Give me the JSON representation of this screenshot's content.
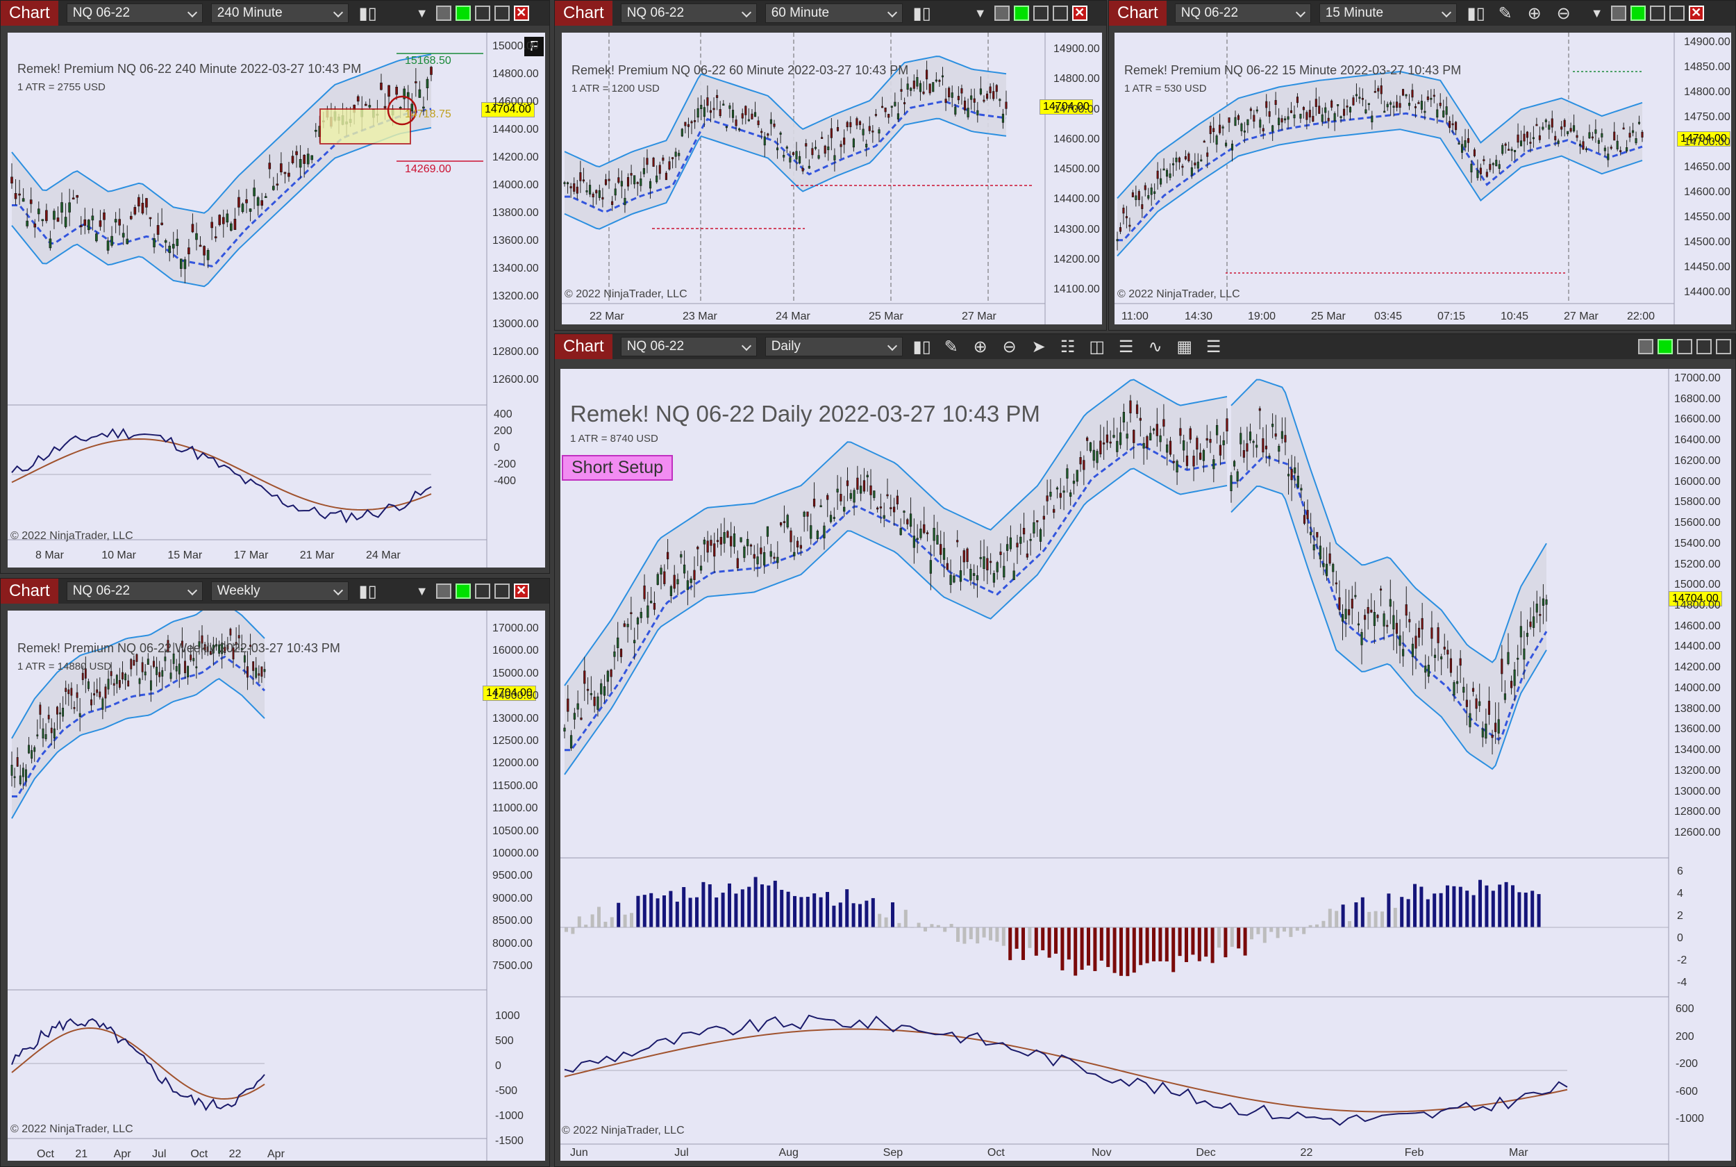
{
  "charts": [
    {
      "id": "tl",
      "title": "Chart",
      "instrument": "NQ 06-22",
      "interval": "240 Minute",
      "header": "Remek!  Premium  NQ 06-22  240 Minute  2022-03-27 10:43 PM",
      "atr": "1 ATR = 2755 USD",
      "price_tag": "14704.00",
      "level_high": "15168.50",
      "level_mid": "14718.75",
      "level_low": "14269.00",
      "y_ticks": [
        "15000.00",
        "14800.00",
        "14600.00",
        "14400.00",
        "14200.00",
        "14000.00",
        "13800.00",
        "13600.00",
        "13400.00",
        "13200.00",
        "13000.00",
        "12800.00",
        "12600.00"
      ],
      "osc_ticks": [
        "400",
        "200",
        "0",
        "-200",
        "-400"
      ],
      "x_ticks": [
        "8 Mar",
        "10 Mar",
        "15 Mar",
        "17 Mar",
        "21 Mar",
        "24 Mar"
      ],
      "copyright": "© 2022 NinjaTrader, LLC",
      "badge": "F"
    },
    {
      "id": "tm",
      "title": "Chart",
      "instrument": "NQ 06-22",
      "interval": "60 Minute",
      "header": "Remek!  Premium  NQ 06-22  60 Minute  2022-03-27 10:43 PM",
      "atr": "1 ATR = 1200 USD",
      "price_tag": "14704.00",
      "y_ticks": [
        "14900.00",
        "14800.00",
        "14700.00",
        "14600.00",
        "14500.00",
        "14400.00",
        "14300.00",
        "14200.00",
        "14100.00"
      ],
      "x_ticks": [
        "22 Mar",
        "23 Mar",
        "24 Mar",
        "25 Mar",
        "27 Mar"
      ],
      "copyright": "© 2022 NinjaTrader, LLC"
    },
    {
      "id": "tr",
      "title": "Chart",
      "instrument": "NQ 06-22",
      "interval": "15 Minute",
      "header": "Remek!  Premium  NQ 06-22  15 Minute  2022-03-27 10:43 PM",
      "atr": "1 ATR = 530 USD",
      "price_tag": "14704.00",
      "y_ticks": [
        "14900.00",
        "14850.00",
        "14800.00",
        "14750.00",
        "14700.00",
        "14650.00",
        "14600.00",
        "14550.00",
        "14500.00",
        "14450.00",
        "14400.00"
      ],
      "x_ticks": [
        "11:00",
        "14:30",
        "19:00",
        "25 Mar",
        "03:45",
        "07:15",
        "10:45",
        "27 Mar",
        "22:00"
      ],
      "copyright": "© 2022 NinjaTrader, LLC"
    },
    {
      "id": "bl",
      "title": "Chart",
      "instrument": "NQ 06-22",
      "interval": "Weekly",
      "header": "Remek!  Premium  NQ 06-22  Weekly  2022-03-27 10:43 PM",
      "atr": "1 ATR = 14880 USD",
      "price_tag": "14704.00",
      "y_ticks": [
        "17000.00",
        "16000.00",
        "15000.00",
        "14000.00",
        "13000.00",
        "12500.00",
        "12000.00",
        "11500.00",
        "11000.00",
        "10500.00",
        "10000.00",
        "9500.00",
        "9000.00",
        "8500.00",
        "8000.00",
        "7500.00"
      ],
      "osc_ticks": [
        "1000",
        "500",
        "0",
        "-500",
        "-1000",
        "-1500"
      ],
      "x_ticks": [
        "Oct",
        "21",
        "Apr",
        "Jul",
        "Oct",
        "22",
        "Apr"
      ],
      "copyright": "© 2022 NinjaTrader, LLC"
    },
    {
      "id": "br",
      "title": "Chart",
      "instrument": "NQ 06-22",
      "interval": "Daily",
      "header": "Remek!  NQ 06-22  Daily  2022-03-27 10:43 PM",
      "atr": "1 ATR = 8740 USD",
      "price_tag": "14704.00",
      "setup": "Short Setup",
      "y_ticks": [
        "17000.00",
        "16800.00",
        "16600.00",
        "16400.00",
        "16200.00",
        "16000.00",
        "15800.00",
        "15600.00",
        "15400.00",
        "15200.00",
        "15000.00",
        "14800.00",
        "14600.00",
        "14400.00",
        "14200.00",
        "14000.00",
        "13800.00",
        "13600.00",
        "13400.00",
        "13200.00",
        "13000.00",
        "12800.00",
        "12600.00"
      ],
      "hist_ticks": [
        "6",
        "4",
        "2",
        "0",
        "-2",
        "-4"
      ],
      "osc_ticks": [
        "600",
        "200",
        "-200",
        "-600",
        "-1000"
      ],
      "x_ticks": [
        "Jun",
        "Jul",
        "Aug",
        "Sep",
        "Oct",
        "Nov",
        "Dec",
        "22",
        "Feb",
        "Mar"
      ],
      "copyright": "© 2022 NinjaTrader, LLC"
    }
  ],
  "colors": {
    "panel": "#e6e6f5",
    "band": "#2b8fe0",
    "ema": "#3355dd",
    "signal_red": "#cc1030",
    "yellow": "#e6e600",
    "bull": "#1e5e2a",
    "bear": "#7a1010"
  }
}
